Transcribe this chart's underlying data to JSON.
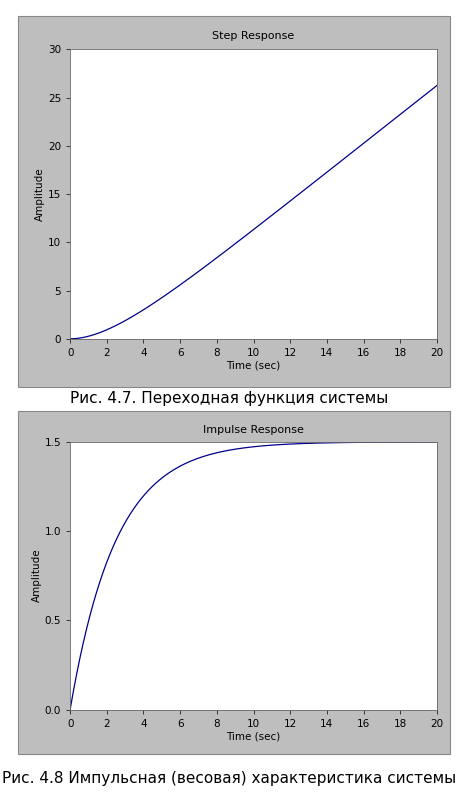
{
  "plot1_title": "Step Response",
  "plot1_xlabel": "Time (sec)",
  "plot1_ylabel": "Amplitude",
  "plot1_xlim": [
    0,
    20
  ],
  "plot1_ylim": [
    0,
    30
  ],
  "plot1_xticks": [
    0,
    2,
    4,
    6,
    8,
    10,
    12,
    14,
    16,
    18,
    20
  ],
  "plot1_yticks": [
    0,
    5,
    10,
    15,
    20,
    25,
    30
  ],
  "plot1_line_color": "#00008B",
  "plot2_title": "Impulse Response",
  "plot2_xlabel": "Time (sec)",
  "plot2_ylabel": "Amplitude",
  "plot2_xlim": [
    0,
    20
  ],
  "plot2_ylim": [
    0,
    1.5
  ],
  "plot2_xticks": [
    0,
    2,
    4,
    6,
    8,
    10,
    12,
    14,
    16,
    18,
    20
  ],
  "plot2_yticks": [
    0,
    0.5,
    1.0,
    1.5
  ],
  "plot2_line_color": "#00008B",
  "caption1": "Рис. 4.7. Переходная функция системы",
  "caption2": "Рис. 4.8 Импульсная (весовая) характеристика системы",
  "fig_bg_color": "#FFFFFF",
  "matlab_fig_bg": "#BEBEBE",
  "plot_bg_color": "#FFFFFF",
  "gain": 1.5,
  "pole": 0.4,
  "caption_fontsize": 11,
  "title_fontsize": 8,
  "axis_label_fontsize": 7.5,
  "tick_fontsize": 7.5
}
